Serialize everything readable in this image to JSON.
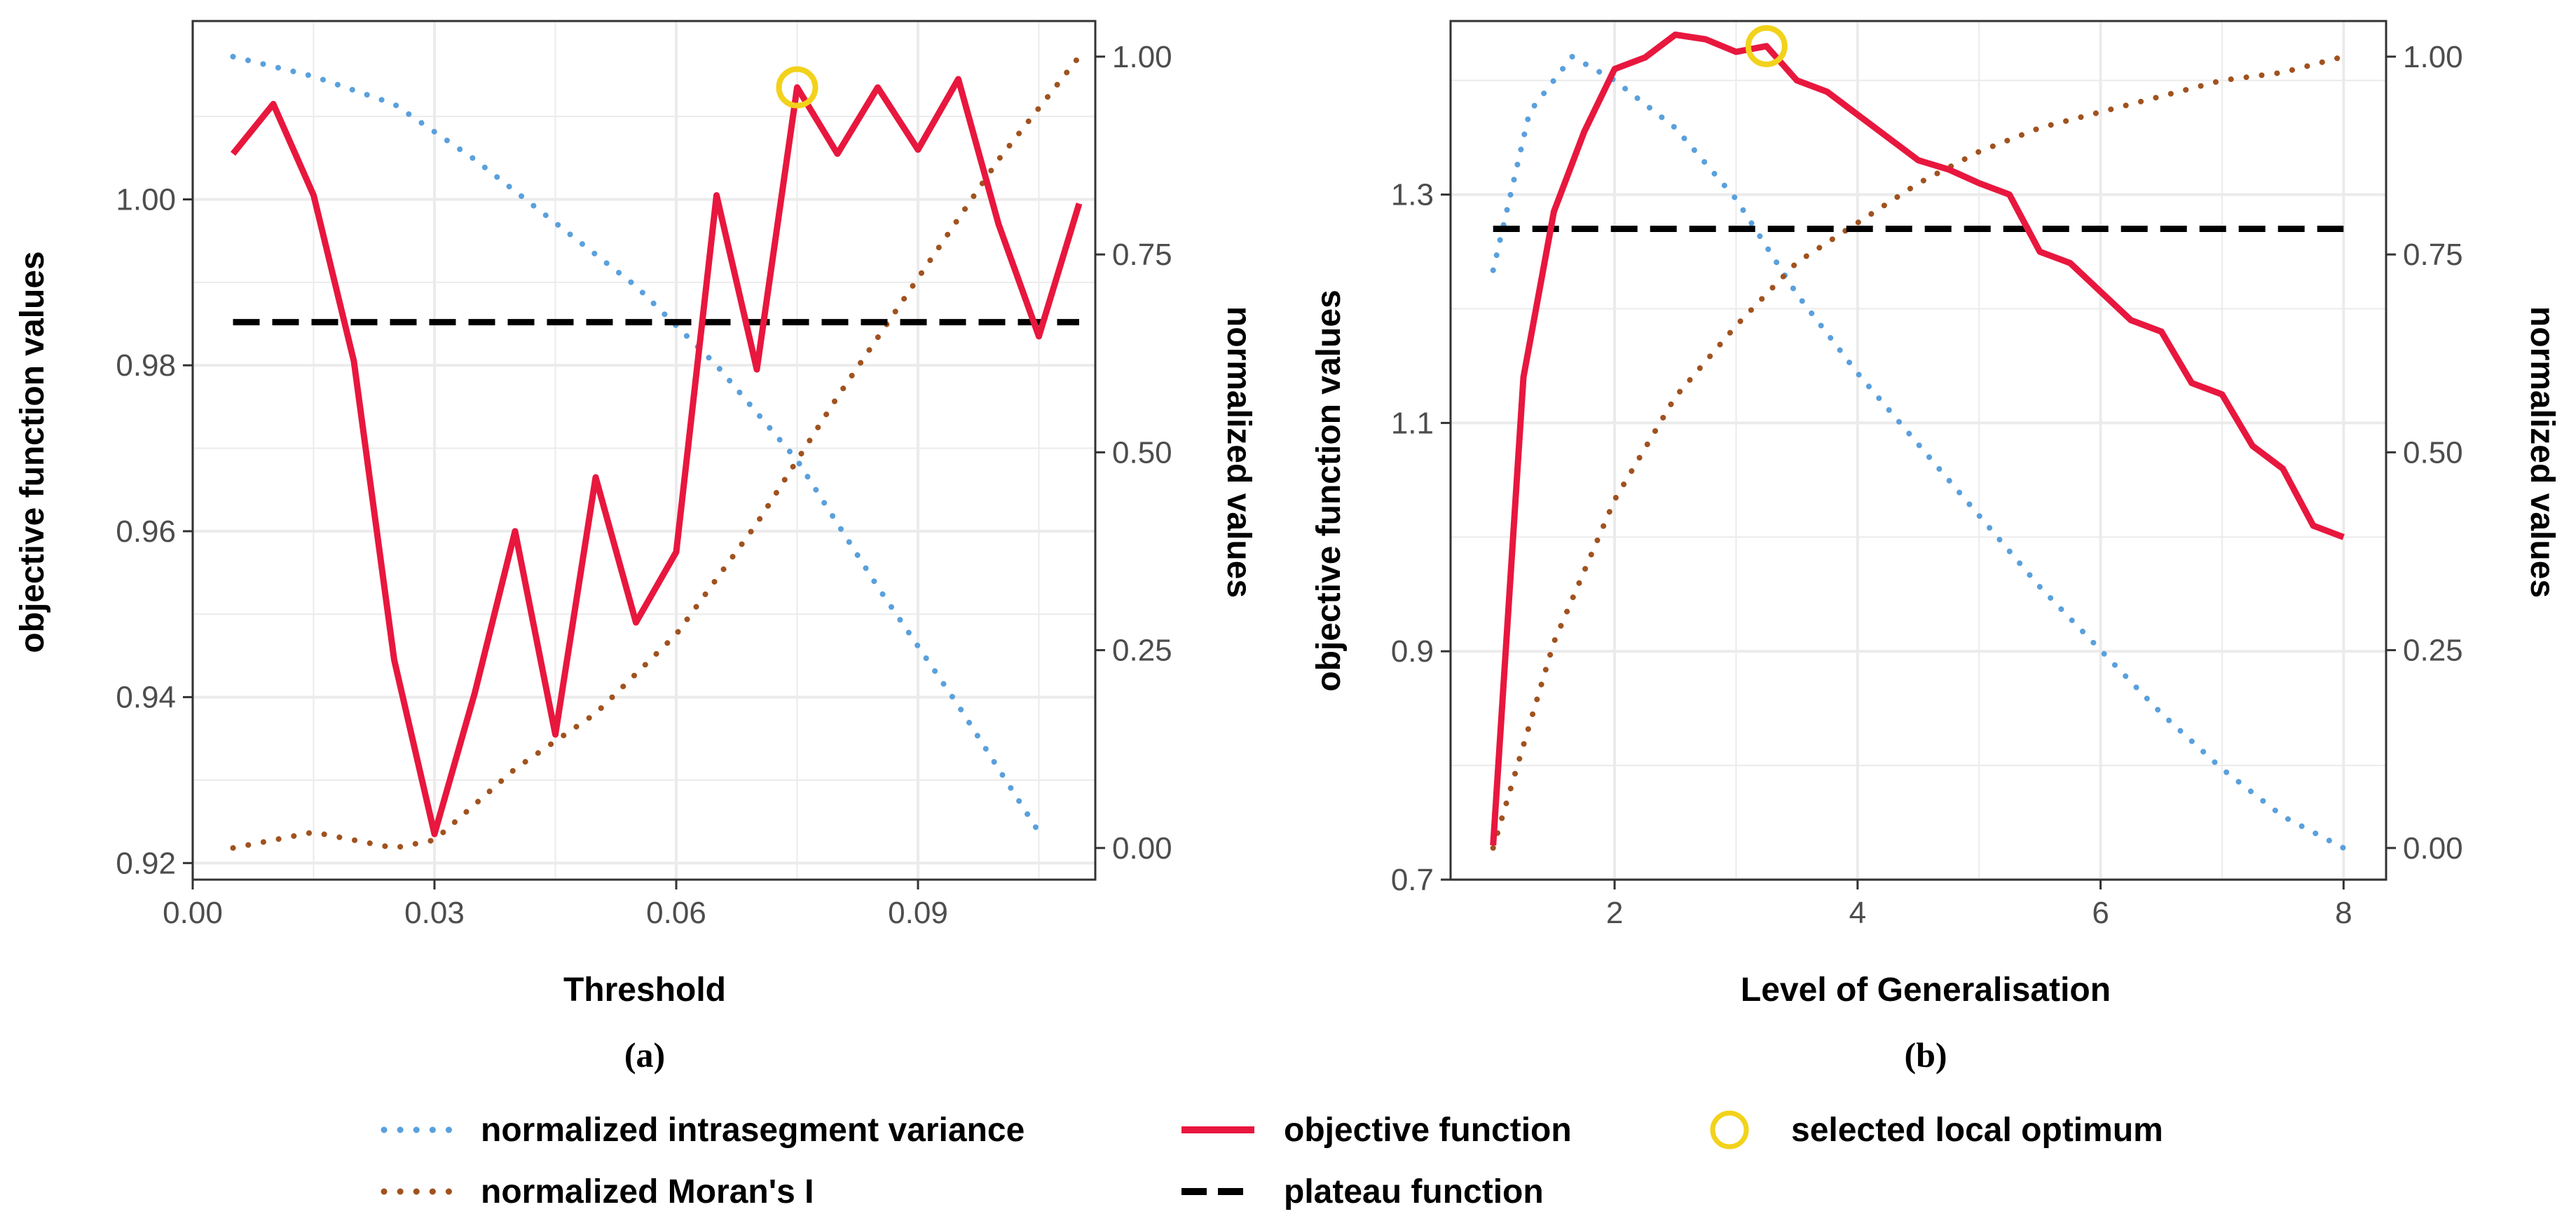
{
  "colors": {
    "objective": "#e8173e",
    "variance": "#5aa0dc",
    "moran": "#a0521e",
    "plateau": "#000000",
    "optimum": "#f2d21b",
    "grid": "#ebebeb",
    "panel_border": "#333333"
  },
  "legend": {
    "variance": "normalized intrasegment variance",
    "moran": "normalized Moran's I",
    "objective": "objective function",
    "plateau": "plateau function",
    "optimum": "selected local optimum"
  },
  "chart_data": [
    {
      "type": "line",
      "panel_label": "(a)",
      "xlabel": "Threshold",
      "ylabel": "objective function values",
      "y2label": "normalized values",
      "xlim": [
        0.0,
        0.112
      ],
      "ylim": [
        0.918,
        1.0215
      ],
      "y2lim": [
        -0.04,
        1.045
      ],
      "xticks": [
        0.0,
        0.03,
        0.06,
        0.09
      ],
      "xtick_labels": [
        "0.00",
        "0.03",
        "0.06",
        "0.09"
      ],
      "yticks": [
        0.92,
        0.94,
        0.96,
        0.98,
        1.0
      ],
      "ytick_labels": [
        "0.92",
        "0.94",
        "0.96",
        "0.98",
        "1.00"
      ],
      "y2ticks": [
        0.0,
        0.25,
        0.5,
        0.75,
        1.0
      ],
      "y2tick_labels": [
        "0.00",
        "0.25",
        "0.50",
        "0.75",
        "1.00"
      ],
      "grid": true,
      "series": [
        {
          "name": "objective function",
          "axis": "left",
          "style": "solid",
          "x": [
            0.005,
            0.01,
            0.015,
            0.02,
            0.025,
            0.03,
            0.035,
            0.04,
            0.045,
            0.05,
            0.055,
            0.06,
            0.065,
            0.07,
            0.075,
            0.08,
            0.085,
            0.09,
            0.095,
            0.1,
            0.105,
            0.11
          ],
          "y": [
            1.0055,
            1.0115,
            1.0005,
            0.9805,
            0.9445,
            0.9235,
            0.9405,
            0.96,
            0.9355,
            0.9665,
            0.949,
            0.9575,
            1.0005,
            0.9795,
            1.0135,
            1.0055,
            1.0135,
            1.006,
            1.0145,
            0.997,
            0.9835,
            0.9995
          ]
        },
        {
          "name": "plateau function",
          "axis": "left",
          "style": "dashed",
          "x": [
            0.005,
            0.11
          ],
          "y": [
            0.9852,
            0.9852
          ]
        },
        {
          "name": "normalized intrasegment variance",
          "axis": "right",
          "style": "dotted",
          "x": [
            0.005,
            0.015,
            0.025,
            0.035,
            0.045,
            0.055,
            0.065,
            0.075,
            0.085,
            0.095,
            0.105
          ],
          "y": [
            1.0,
            0.975,
            0.94,
            0.87,
            0.79,
            0.71,
            0.61,
            0.49,
            0.33,
            0.18,
            0.02
          ]
        },
        {
          "name": "normalized Moran's I",
          "axis": "right",
          "style": "dotted",
          "x": [
            0.005,
            0.015,
            0.025,
            0.03,
            0.04,
            0.05,
            0.06,
            0.07,
            0.08,
            0.09,
            0.1,
            0.11
          ],
          "y": [
            0.0,
            0.02,
            0.0,
            0.01,
            0.1,
            0.17,
            0.27,
            0.41,
            0.57,
            0.72,
            0.87,
            1.0
          ]
        }
      ],
      "optimum": {
        "x": 0.075,
        "y": 1.0135
      }
    },
    {
      "type": "line",
      "panel_label": "(b)",
      "xlabel": "Level of Generalisation",
      "ylabel": "objective function values",
      "y2label": "normalized values",
      "xlim": [
        0.65,
        8.35
      ],
      "ylim": [
        0.7,
        1.452
      ],
      "y2lim": [
        -0.04,
        1.045
      ],
      "xticks": [
        2,
        4,
        6,
        8
      ],
      "xtick_labels": [
        "2",
        "4",
        "6",
        "8"
      ],
      "yticks": [
        0.7,
        0.9,
        1.1,
        1.3
      ],
      "ytick_labels": [
        "0.7",
        "0.9",
        "1.1",
        "1.3"
      ],
      "y2ticks": [
        0.0,
        0.25,
        0.5,
        0.75,
        1.0
      ],
      "y2tick_labels": [
        "0.00",
        "0.25",
        "0.50",
        "0.75",
        "1.00"
      ],
      "grid": true,
      "series": [
        {
          "name": "objective function",
          "axis": "left",
          "style": "solid",
          "x": [
            1.0,
            1.25,
            1.5,
            1.75,
            2.0,
            2.25,
            2.5,
            2.75,
            3.0,
            3.25,
            3.5,
            3.75,
            4.0,
            4.25,
            4.5,
            4.75,
            5.0,
            5.25,
            5.5,
            5.75,
            6.0,
            6.25,
            6.5,
            6.75,
            7.0,
            7.25,
            7.5,
            7.75,
            8.0
          ],
          "y": [
            0.73,
            1.14,
            1.285,
            1.355,
            1.41,
            1.42,
            1.44,
            1.436,
            1.425,
            1.43,
            1.4,
            1.39,
            1.37,
            1.35,
            1.33,
            1.322,
            1.31,
            1.3,
            1.25,
            1.24,
            1.215,
            1.19,
            1.18,
            1.135,
            1.125,
            1.08,
            1.06,
            1.01,
            1.0
          ]
        },
        {
          "name": "plateau function",
          "axis": "left",
          "style": "dashed",
          "x": [
            1.0,
            8.0
          ],
          "y": [
            1.27,
            1.27
          ]
        },
        {
          "name": "normalized intrasegment variance",
          "axis": "right",
          "style": "dotted",
          "x": [
            1.0,
            1.3,
            1.65,
            2.0,
            2.5,
            3.0,
            3.5,
            4.0,
            4.5,
            5.0,
            5.5,
            6.0,
            6.5,
            7.0,
            7.5,
            8.0
          ],
          "y": [
            0.73,
            0.93,
            1.0,
            0.97,
            0.91,
            0.82,
            0.7,
            0.6,
            0.51,
            0.42,
            0.33,
            0.25,
            0.17,
            0.1,
            0.04,
            0.0
          ]
        },
        {
          "name": "normalized Moran's I",
          "axis": "right",
          "style": "dotted",
          "x": [
            1.0,
            1.5,
            2.0,
            2.5,
            3.0,
            3.5,
            4.0,
            4.5,
            5.0,
            5.5,
            6.0,
            6.5,
            7.0,
            7.5,
            8.0
          ],
          "y": [
            0.0,
            0.26,
            0.44,
            0.57,
            0.66,
            0.74,
            0.79,
            0.84,
            0.88,
            0.91,
            0.93,
            0.95,
            0.97,
            0.98,
            1.0
          ]
        }
      ],
      "optimum": {
        "x": 3.25,
        "y": 1.43
      }
    }
  ]
}
